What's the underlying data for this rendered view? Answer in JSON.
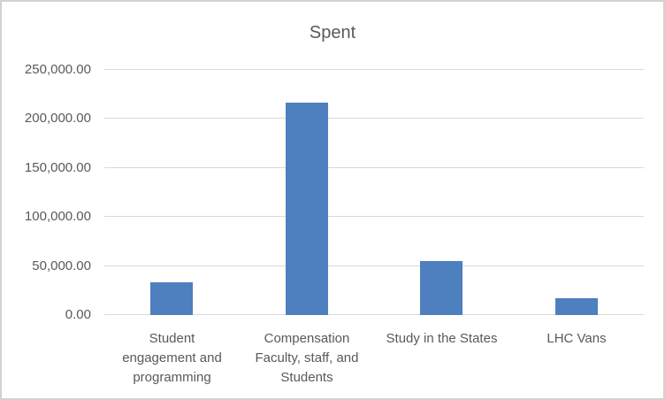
{
  "chart_data": {
    "type": "bar",
    "title": "Spent",
    "categories": [
      "Student engagement and programming",
      "Compensation Faculty, staff, and Students",
      "Study in the States",
      "LHC Vans"
    ],
    "values": [
      33000,
      217000,
      55000,
      17000
    ],
    "xtick_display": [
      "Student\nengagement and\nprogramming",
      "Compensation\nFaculty, staff, and\nStudents",
      "Study in the States",
      "LHC Vans"
    ],
    "ylim": [
      0,
      250000
    ],
    "ytick_interval": 50000,
    "ytick_labels_bottom_to_top": [
      "0.00",
      "50,000.00",
      "100,000.00",
      "150,000.00",
      "200,000.00",
      "250,000.00"
    ],
    "xlabel": "",
    "ylabel": "",
    "legend": "none",
    "grid": true,
    "colors": {
      "bar": "#4E7FBE",
      "gridline": "#D9D9D9",
      "axis_text": "#595959",
      "title_text": "#595959",
      "chart_border": "#D2D2D2",
      "background": "#FFFFFF"
    }
  }
}
